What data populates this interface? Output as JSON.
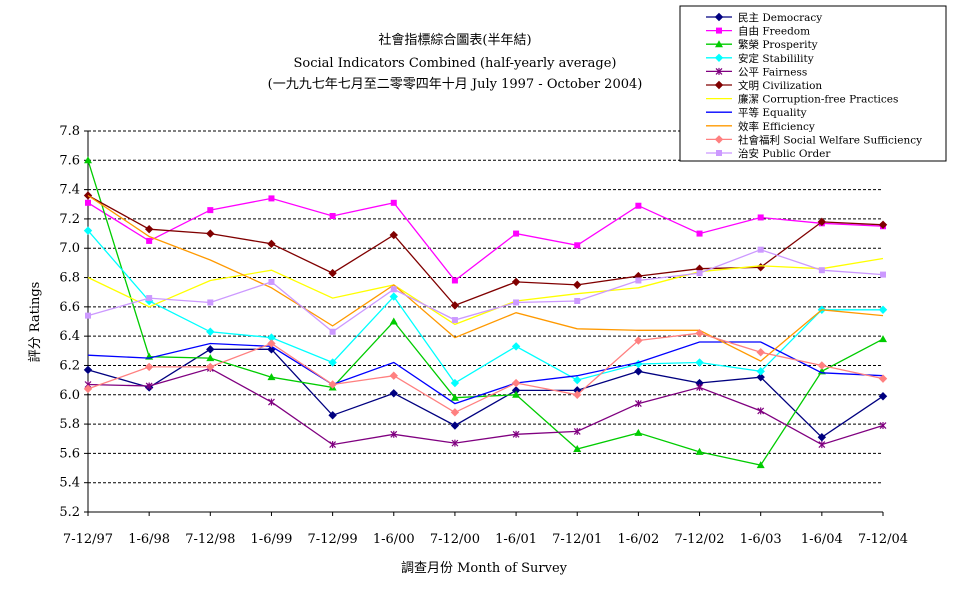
{
  "chart_data": {
    "type": "line",
    "title": "社會指標綜合圖表(半年結)",
    "subtitle": "Social Indicators Combined (half-yearly average)",
    "subtitle2": "(一九九七年七月至二零零四年十月 July 1997 - October 2004)",
    "xlabel": "調查月份 Month of Survey",
    "ylabel": "評分 Ratings",
    "ylim": [
      5.2,
      7.8
    ],
    "yticks": [
      "5.2",
      "5.4",
      "5.6",
      "5.8",
      "6.0",
      "6.2",
      "6.4",
      "6.6",
      "6.8",
      "7.0",
      "7.2",
      "7.4",
      "7.6",
      "7.8"
    ],
    "grid": "horizontal dashed",
    "legend_position": "top-right",
    "categories": [
      "7-12/97",
      "1-6/98",
      "7-12/98",
      "1-6/99",
      "7-12/99",
      "1-6/00",
      "7-12/00",
      "1-6/01",
      "7-12/01",
      "1-6/02",
      "7-12/02",
      "1-6/03",
      "1-6/04",
      "7-12/04"
    ],
    "series": [
      {
        "name": "民主 Democracy",
        "color": "#000080",
        "marker": "diamond",
        "values": [
          6.17,
          6.05,
          6.31,
          6.31,
          5.86,
          6.01,
          5.79,
          6.03,
          6.03,
          6.16,
          6.08,
          6.12,
          5.71,
          5.99
        ]
      },
      {
        "name": "自由 Freedom",
        "color": "#ff00ff",
        "marker": "square",
        "values": [
          7.31,
          7.05,
          7.26,
          7.34,
          7.22,
          7.31,
          6.78,
          7.1,
          7.02,
          7.29,
          7.1,
          7.21,
          7.17,
          7.15
        ]
      },
      {
        "name": "繁榮 Prosperity",
        "color": "#00cc00",
        "marker": "triangle",
        "values": [
          7.6,
          6.26,
          6.25,
          6.12,
          6.05,
          6.5,
          5.98,
          6.0,
          5.63,
          5.74,
          5.61,
          5.52,
          6.16,
          6.38
        ]
      },
      {
        "name": "安定 Stabilility",
        "color": "#00ffff",
        "marker": "diamond",
        "values": [
          7.12,
          6.64,
          6.43,
          6.39,
          6.22,
          6.67,
          6.08,
          6.33,
          6.1,
          6.21,
          6.22,
          6.16,
          6.58,
          6.58
        ]
      },
      {
        "name": "公平 Fairness",
        "color": "#800080",
        "marker": "star",
        "values": [
          6.07,
          6.06,
          6.18,
          5.95,
          5.66,
          5.73,
          5.67,
          5.73,
          5.75,
          5.94,
          6.05,
          5.89,
          5.66,
          5.79
        ]
      },
      {
        "name": "文明 Civilization",
        "color": "#800000",
        "marker": "diamond",
        "values": [
          7.36,
          7.13,
          7.1,
          7.03,
          6.83,
          7.09,
          6.61,
          6.77,
          6.75,
          6.81,
          6.86,
          6.87,
          7.18,
          7.16
        ]
      },
      {
        "name": "廉潔 Corruption-free Practices",
        "color": "#ffff00",
        "marker": "none",
        "values": [
          6.8,
          6.6,
          6.78,
          6.85,
          6.66,
          6.75,
          6.48,
          6.64,
          6.69,
          6.73,
          6.84,
          6.88,
          6.86,
          6.93
        ]
      },
      {
        "name": "平等 Equality",
        "color": "#0000ff",
        "marker": "none",
        "values": [
          6.27,
          6.25,
          6.35,
          6.33,
          6.07,
          6.22,
          5.94,
          6.08,
          6.13,
          6.22,
          6.36,
          6.36,
          6.15,
          6.13
        ]
      },
      {
        "name": "效率 Efficiency",
        "color": "#ff9900",
        "marker": "none",
        "values": [
          7.36,
          7.08,
          6.92,
          6.73,
          6.47,
          6.75,
          6.39,
          6.56,
          6.45,
          6.44,
          6.44,
          6.23,
          6.58,
          6.54
        ]
      },
      {
        "name": "社會福利 Social Welfare Sufficiency",
        "color": "#ff8080",
        "marker": "diamond",
        "values": [
          6.04,
          6.19,
          6.19,
          6.35,
          6.07,
          6.13,
          5.88,
          6.08,
          6.0,
          6.37,
          6.42,
          6.29,
          6.2,
          6.11
        ]
      },
      {
        "name": "治安 Public Order",
        "color": "#cc99ff",
        "marker": "square",
        "values": [
          6.54,
          6.66,
          6.63,
          6.77,
          6.43,
          6.72,
          6.51,
          6.63,
          6.64,
          6.78,
          6.83,
          6.99,
          6.85,
          6.82
        ]
      }
    ]
  }
}
